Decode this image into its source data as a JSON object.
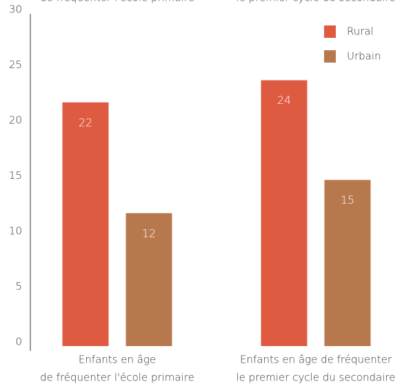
{
  "chart_data": {
    "type": "bar",
    "categories": [
      [
        "Enfants en âge",
        "de fréquenter l'école primaire"
      ],
      [
        "Enfants en âge de fréquenter",
        "le premier cycle du secondaire"
      ]
    ],
    "series": [
      {
        "name": "Rural",
        "color": "#de5a41",
        "values": [
          22,
          24
        ]
      },
      {
        "name": "Urbain",
        "color": "#b8784e",
        "values": [
          12,
          15
        ]
      }
    ],
    "ylim": [
      0,
      30
    ],
    "yticks": [
      0,
      5,
      10,
      15,
      20,
      25,
      30
    ],
    "grid": false,
    "legend": "upper-right"
  }
}
